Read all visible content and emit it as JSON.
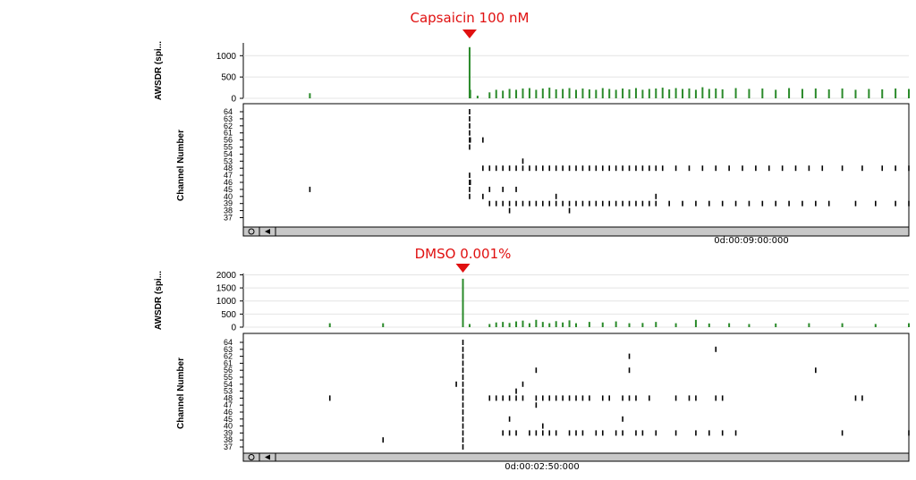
{
  "colors": {
    "stimulus": "#e01010",
    "rate_bars": "#2a8a2a",
    "spikes": "#000000",
    "scrollbar": "#c8c8c8"
  },
  "panels": [
    {
      "stimulus_label": "Capsaicin 100 nM",
      "time_label": "0d:00:09:00:000",
      "icons": [
        "circle-icon",
        "left-arrow-icon"
      ]
    },
    {
      "stimulus_label": "DMSO 0.001%",
      "time_label": "0d:00:02:50:000",
      "icons": [
        "circle-icon",
        "left-arrow-icon"
      ]
    }
  ],
  "chart_data": [
    {
      "type": "bar",
      "ylabel": "AWSDR (spi...",
      "yticks": [
        0,
        500,
        1000
      ],
      "ylim": [
        0,
        1300
      ],
      "x_range": [
        0,
        1
      ],
      "stimulus_x": 0.34,
      "bars": [
        {
          "x": 0.1,
          "y": 120
        },
        {
          "x": 0.34,
          "y": 1200
        },
        {
          "x": 0.341,
          "y": 200
        },
        {
          "x": 0.352,
          "y": 60
        },
        {
          "x": 0.37,
          "y": 140
        },
        {
          "x": 0.38,
          "y": 200
        },
        {
          "x": 0.39,
          "y": 180
        },
        {
          "x": 0.4,
          "y": 220
        },
        {
          "x": 0.41,
          "y": 200
        },
        {
          "x": 0.42,
          "y": 230
        },
        {
          "x": 0.43,
          "y": 240
        },
        {
          "x": 0.44,
          "y": 200
        },
        {
          "x": 0.45,
          "y": 230
        },
        {
          "x": 0.46,
          "y": 250
        },
        {
          "x": 0.47,
          "y": 210
        },
        {
          "x": 0.48,
          "y": 220
        },
        {
          "x": 0.49,
          "y": 240
        },
        {
          "x": 0.5,
          "y": 200
        },
        {
          "x": 0.51,
          "y": 230
        },
        {
          "x": 0.52,
          "y": 210
        },
        {
          "x": 0.53,
          "y": 200
        },
        {
          "x": 0.54,
          "y": 240
        },
        {
          "x": 0.55,
          "y": 220
        },
        {
          "x": 0.56,
          "y": 200
        },
        {
          "x": 0.57,
          "y": 230
        },
        {
          "x": 0.58,
          "y": 210
        },
        {
          "x": 0.59,
          "y": 240
        },
        {
          "x": 0.6,
          "y": 200
        },
        {
          "x": 0.61,
          "y": 220
        },
        {
          "x": 0.62,
          "y": 230
        },
        {
          "x": 0.63,
          "y": 250
        },
        {
          "x": 0.64,
          "y": 210
        },
        {
          "x": 0.65,
          "y": 240
        },
        {
          "x": 0.66,
          "y": 220
        },
        {
          "x": 0.67,
          "y": 230
        },
        {
          "x": 0.68,
          "y": 200
        },
        {
          "x": 0.69,
          "y": 260
        },
        {
          "x": 0.7,
          "y": 220
        },
        {
          "x": 0.71,
          "y": 230
        },
        {
          "x": 0.72,
          "y": 210
        },
        {
          "x": 0.74,
          "y": 240
        },
        {
          "x": 0.76,
          "y": 220
        },
        {
          "x": 0.78,
          "y": 230
        },
        {
          "x": 0.8,
          "y": 200
        },
        {
          "x": 0.82,
          "y": 240
        },
        {
          "x": 0.84,
          "y": 220
        },
        {
          "x": 0.86,
          "y": 230
        },
        {
          "x": 0.88,
          "y": 210
        },
        {
          "x": 0.9,
          "y": 230
        },
        {
          "x": 0.92,
          "y": 200
        },
        {
          "x": 0.94,
          "y": 220
        },
        {
          "x": 0.96,
          "y": 210
        },
        {
          "x": 0.98,
          "y": 230
        },
        {
          "x": 1.0,
          "y": 220
        }
      ]
    },
    {
      "type": "scatter",
      "ylabel": "Channel Number",
      "channels": [
        "64",
        "63",
        "62",
        "61",
        "56",
        "55",
        "54",
        "53",
        "48",
        "47",
        "46",
        "45",
        "40",
        "39",
        "38",
        "37"
      ],
      "x_range": [
        0,
        1
      ],
      "spikes": [
        {
          "channel": "64",
          "x": [
            0.34
          ]
        },
        {
          "channel": "63",
          "x": [
            0.34
          ]
        },
        {
          "channel": "62",
          "x": [
            0.34
          ]
        },
        {
          "channel": "61",
          "x": [
            0.34
          ]
        },
        {
          "channel": "56",
          "x": [
            0.34,
            0.341,
            0.36
          ]
        },
        {
          "channel": "55",
          "x": [
            0.34
          ]
        },
        {
          "channel": "53",
          "x": [
            0.42
          ]
        },
        {
          "channel": "48",
          "x": [
            0.36,
            0.37,
            0.38,
            0.39,
            0.4,
            0.41,
            0.42,
            0.43,
            0.44,
            0.45,
            0.46,
            0.47,
            0.48,
            0.49,
            0.5,
            0.51,
            0.52,
            0.53,
            0.54,
            0.55,
            0.56,
            0.57,
            0.58,
            0.59,
            0.6,
            0.61,
            0.62,
            0.63,
            0.65,
            0.67,
            0.69,
            0.71,
            0.73,
            0.75,
            0.77,
            0.79,
            0.81,
            0.83,
            0.85,
            0.87,
            0.9,
            0.93,
            0.96,
            0.98,
            1.0
          ]
        },
        {
          "channel": "47",
          "x": [
            0.34
          ]
        },
        {
          "channel": "46",
          "x": [
            0.34,
            0.341
          ]
        },
        {
          "channel": "45",
          "x": [
            0.1,
            0.34,
            0.37,
            0.39,
            0.41
          ]
        },
        {
          "channel": "40",
          "x": [
            0.34,
            0.36,
            0.47,
            0.62
          ]
        },
        {
          "channel": "39",
          "x": [
            0.37,
            0.38,
            0.39,
            0.4,
            0.41,
            0.42,
            0.43,
            0.44,
            0.45,
            0.46,
            0.47,
            0.48,
            0.49,
            0.5,
            0.51,
            0.52,
            0.53,
            0.54,
            0.55,
            0.56,
            0.57,
            0.58,
            0.59,
            0.6,
            0.61,
            0.62,
            0.64,
            0.66,
            0.68,
            0.7,
            0.72,
            0.74,
            0.76,
            0.78,
            0.8,
            0.82,
            0.84,
            0.86,
            0.88,
            0.92,
            0.95,
            0.98,
            1.0
          ]
        },
        {
          "channel": "38",
          "x": [
            0.4,
            0.49
          ]
        }
      ]
    },
    {
      "type": "bar",
      "ylabel": "AWSDR (spi...",
      "yticks": [
        0,
        500,
        1000,
        1500,
        2000
      ],
      "ylim": [
        0,
        2050
      ],
      "x_range": [
        0,
        1
      ],
      "stimulus_x": 0.33,
      "bars": [
        {
          "x": 0.13,
          "y": 150
        },
        {
          "x": 0.21,
          "y": 150
        },
        {
          "x": 0.33,
          "y": 1850
        },
        {
          "x": 0.34,
          "y": 120
        },
        {
          "x": 0.37,
          "y": 120
        },
        {
          "x": 0.38,
          "y": 180
        },
        {
          "x": 0.39,
          "y": 200
        },
        {
          "x": 0.4,
          "y": 160
        },
        {
          "x": 0.41,
          "y": 220
        },
        {
          "x": 0.42,
          "y": 250
        },
        {
          "x": 0.43,
          "y": 150
        },
        {
          "x": 0.44,
          "y": 280
        },
        {
          "x": 0.45,
          "y": 200
        },
        {
          "x": 0.46,
          "y": 150
        },
        {
          "x": 0.47,
          "y": 230
        },
        {
          "x": 0.48,
          "y": 180
        },
        {
          "x": 0.49,
          "y": 260
        },
        {
          "x": 0.5,
          "y": 150
        },
        {
          "x": 0.52,
          "y": 200
        },
        {
          "x": 0.54,
          "y": 180
        },
        {
          "x": 0.56,
          "y": 220
        },
        {
          "x": 0.58,
          "y": 150
        },
        {
          "x": 0.6,
          "y": 160
        },
        {
          "x": 0.62,
          "y": 200
        },
        {
          "x": 0.65,
          "y": 150
        },
        {
          "x": 0.68,
          "y": 280
        },
        {
          "x": 0.7,
          "y": 140
        },
        {
          "x": 0.73,
          "y": 150
        },
        {
          "x": 0.76,
          "y": 120
        },
        {
          "x": 0.8,
          "y": 140
        },
        {
          "x": 0.85,
          "y": 150
        },
        {
          "x": 0.9,
          "y": 150
        },
        {
          "x": 0.95,
          "y": 120
        },
        {
          "x": 1.0,
          "y": 150
        }
      ]
    },
    {
      "type": "scatter",
      "ylabel": "Channel Number",
      "channels": [
        "64",
        "63",
        "62",
        "61",
        "56",
        "55",
        "54",
        "53",
        "48",
        "47",
        "46",
        "45",
        "40",
        "39",
        "38",
        "37"
      ],
      "x_range": [
        0,
        1
      ],
      "spikes": [
        {
          "channel": "64",
          "x": [
            0.33
          ]
        },
        {
          "channel": "63",
          "x": [
            0.33,
            0.71
          ]
        },
        {
          "channel": "62",
          "x": [
            0.33,
            0.58
          ]
        },
        {
          "channel": "61",
          "x": [
            0.33
          ]
        },
        {
          "channel": "56",
          "x": [
            0.33,
            0.44,
            0.58,
            0.86
          ]
        },
        {
          "channel": "55",
          "x": [
            0.33
          ]
        },
        {
          "channel": "54",
          "x": [
            0.32,
            0.33,
            0.42
          ]
        },
        {
          "channel": "53",
          "x": [
            0.33,
            0.41
          ]
        },
        {
          "channel": "48",
          "x": [
            0.13,
            0.33,
            0.37,
            0.38,
            0.39,
            0.4,
            0.41,
            0.42,
            0.44,
            0.45,
            0.46,
            0.47,
            0.48,
            0.49,
            0.5,
            0.51,
            0.52,
            0.54,
            0.55,
            0.57,
            0.58,
            0.59,
            0.61,
            0.65,
            0.67,
            0.68,
            0.71,
            0.72,
            0.92,
            0.93
          ]
        },
        {
          "channel": "47",
          "x": [
            0.33,
            0.44
          ]
        },
        {
          "channel": "46",
          "x": [
            0.33
          ]
        },
        {
          "channel": "45",
          "x": [
            0.33,
            0.4,
            0.57
          ]
        },
        {
          "channel": "40",
          "x": [
            0.33,
            0.45
          ]
        },
        {
          "channel": "39",
          "x": [
            0.33,
            0.39,
            0.4,
            0.41,
            0.43,
            0.44,
            0.45,
            0.46,
            0.47,
            0.49,
            0.5,
            0.51,
            0.53,
            0.54,
            0.56,
            0.57,
            0.59,
            0.6,
            0.62,
            0.65,
            0.68,
            0.7,
            0.72,
            0.74,
            0.9,
            1.0
          ]
        },
        {
          "channel": "38",
          "x": [
            0.21,
            0.33
          ]
        },
        {
          "channel": "37",
          "x": [
            0.33
          ]
        }
      ]
    }
  ]
}
